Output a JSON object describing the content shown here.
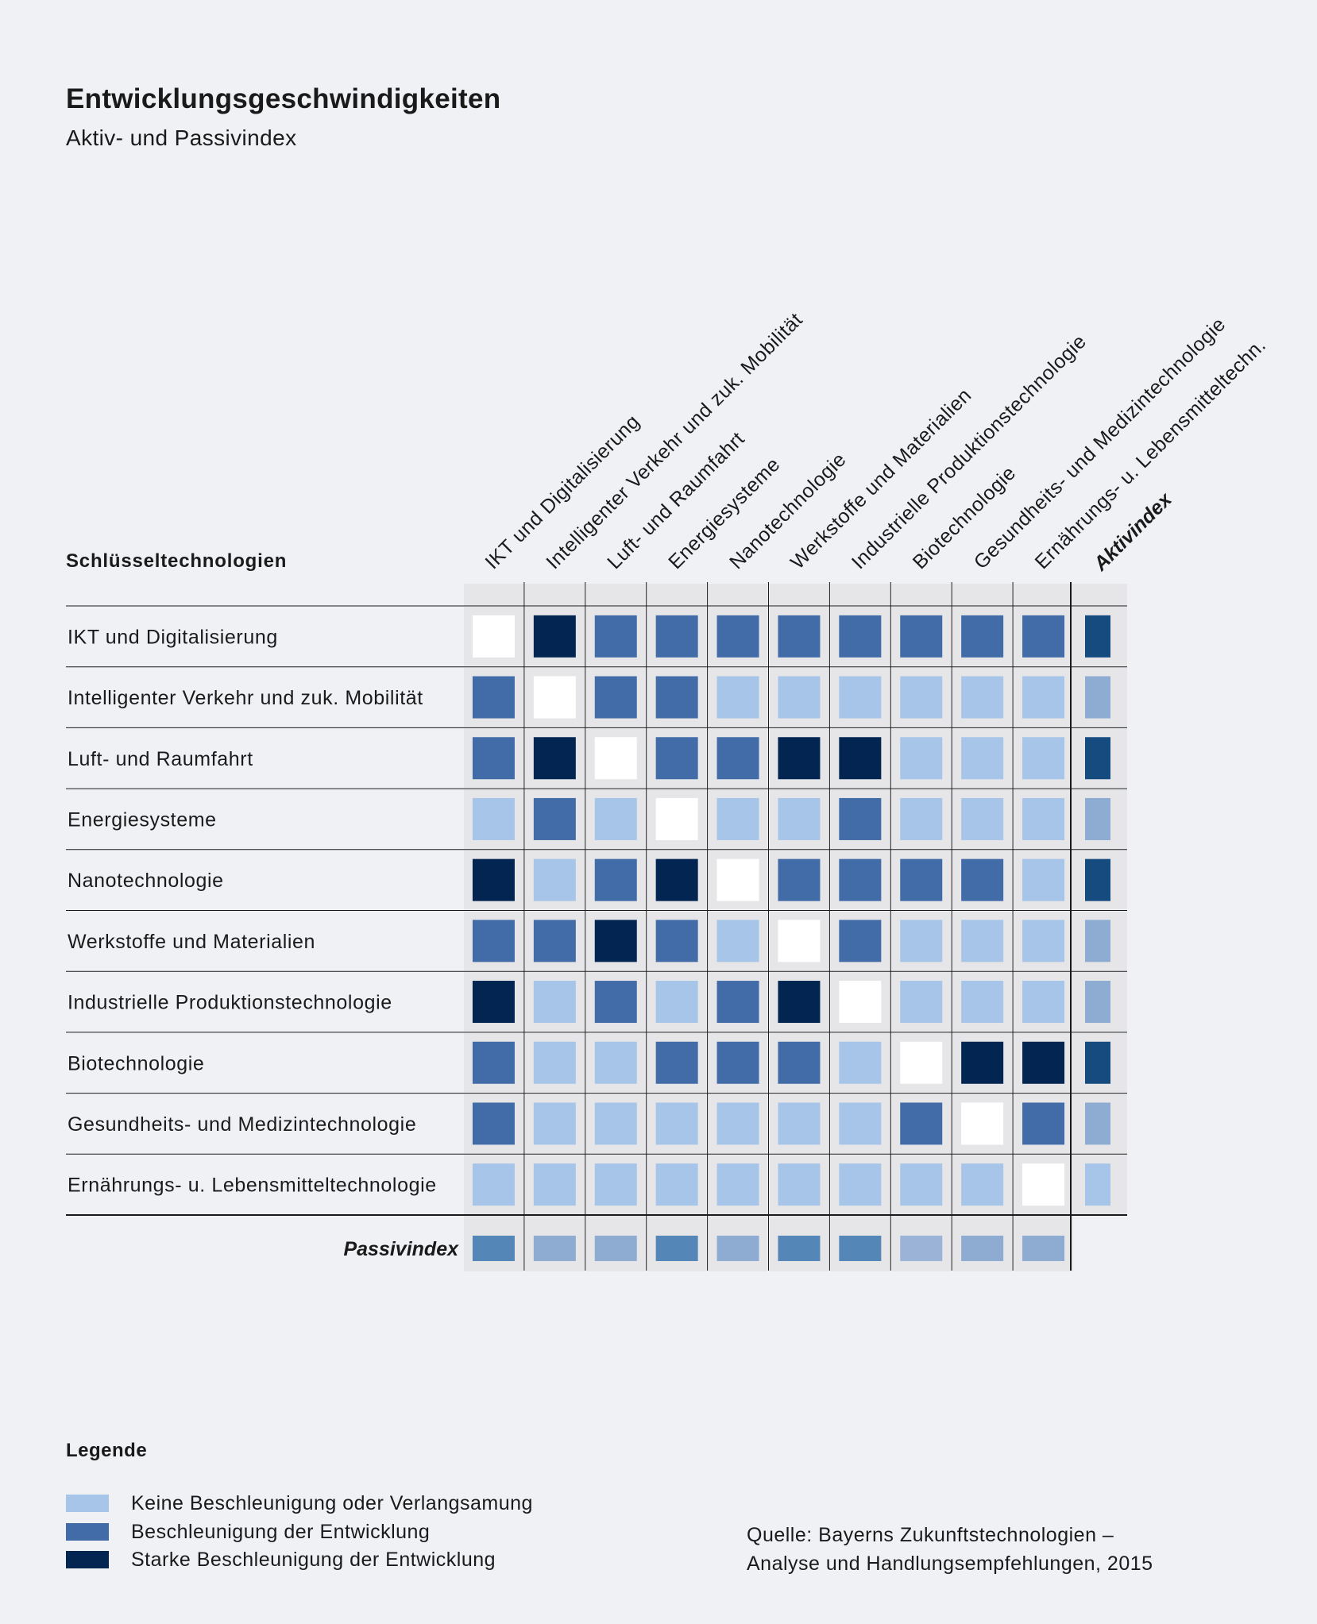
{
  "title": "Entwicklungsgeschwindigkeiten",
  "subtitle": "Aktiv- und Passivindex",
  "chart_data": {
    "type": "heatmap",
    "row_header": "Schlüsseltechnologien",
    "rows": [
      "IKT und Digitalisierung",
      "Intelligenter Verkehr und zuk. Mobilität",
      "Luft- und Raumfahrt",
      "Energiesysteme",
      "Nanotechnologie",
      "Werkstoffe und Materialien",
      "Industrielle Produktionstechnologie",
      "Biotechnologie",
      "Gesundheits- und Medizintechnologie",
      "Ernährungs- u. Lebensmitteltechnologie"
    ],
    "columns": [
      "IKT und Digitalisierung",
      "Intelligenter Verkehr und zuk. Mobilität",
      "Luft- und Raumfahrt",
      "Energiesysteme",
      "Nanotechnologie",
      "Werkstoffe und Materialien",
      "Industrielle Produktionstechnologie",
      "Biotechnologie",
      "Gesundheits- und Medizintechnologie",
      "Ernährungs- u. Lebensmitteltechn."
    ],
    "levels": [
      "Keine Beschleunigung oder Verlangsamung",
      "Beschleunigung der Entwicklung",
      "Starke Beschleunigung der Entwicklung"
    ],
    "values": [
      [
        null,
        2,
        1,
        1,
        1,
        1,
        1,
        1,
        1,
        1
      ],
      [
        1,
        null,
        1,
        1,
        0,
        0,
        0,
        0,
        0,
        0
      ],
      [
        1,
        2,
        null,
        1,
        1,
        2,
        2,
        0,
        0,
        0
      ],
      [
        0,
        1,
        0,
        null,
        0,
        0,
        1,
        0,
        0,
        0
      ],
      [
        2,
        0,
        1,
        2,
        null,
        1,
        1,
        1,
        1,
        0
      ],
      [
        1,
        1,
        2,
        1,
        0,
        null,
        1,
        0,
        0,
        0
      ],
      [
        2,
        0,
        1,
        0,
        1,
        2,
        null,
        0,
        0,
        0
      ],
      [
        1,
        0,
        0,
        1,
        1,
        1,
        0,
        null,
        2,
        2
      ],
      [
        1,
        0,
        0,
        0,
        0,
        0,
        0,
        1,
        null,
        1
      ],
      [
        0,
        0,
        0,
        0,
        0,
        0,
        0,
        0,
        0,
        null
      ]
    ],
    "aktivindex": {
      "label": "Aktivindex",
      "colors": [
        "#164b80",
        "#8eabd1",
        "#164b80",
        "#8eabd1",
        "#164b80",
        "#8eabd1",
        "#8eabd1",
        "#164b80",
        "#8eabd1",
        "#a7c5e8"
      ]
    },
    "passivindex": {
      "label": "Passivindex",
      "colors": [
        "#5486b8",
        "#8eabd1",
        "#8eabd1",
        "#5486b8",
        "#8eabd1",
        "#5486b8",
        "#5486b8",
        "#9bb3d6",
        "#8eabd1",
        "#8eabd1"
      ]
    },
    "colors": {
      "diagonal": "#ffffff",
      "level_0": "#a7c5e8",
      "level_1": "#426ca8",
      "level_2": "#032552",
      "cell_bg": "#e6e6e9",
      "grid": "#1a1a1a"
    }
  },
  "legend": {
    "title": "Legende",
    "items": [
      {
        "label": "Keine Beschleunigung oder Verlangsamung",
        "color": "#a7c5e8"
      },
      {
        "label": "Beschleunigung der Entwicklung",
        "color": "#426ca8"
      },
      {
        "label": "Starke Beschleunigung der Entwicklung",
        "color": "#032552"
      }
    ]
  },
  "source": {
    "line1": "Quelle: Bayerns Zukunftstechnologien –",
    "line2": "Analyse und Handlungsempfehlungen, 2015"
  }
}
